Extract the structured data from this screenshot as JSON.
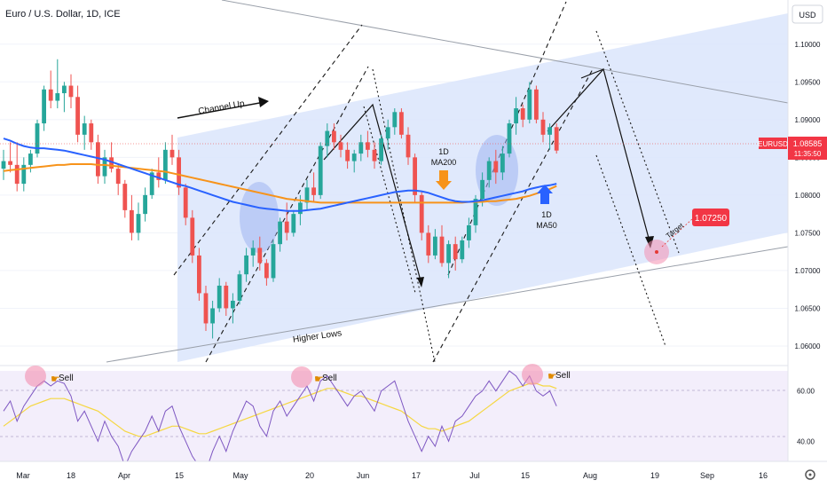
{
  "header": {
    "title": "Euro / U.S. Dollar, 1D, ICE"
  },
  "axis": {
    "currency_label": "USD",
    "y_ticks": [
      "1.10000",
      "1.09500",
      "1.09000",
      "1.08500",
      "1.08000",
      "1.07500",
      "1.07000",
      "1.06500",
      "1.06000"
    ],
    "rsi_ticks": [
      "60.00",
      "40.00"
    ],
    "x_ticks": [
      "Mar",
      "18",
      "Apr",
      "15",
      "May",
      "20",
      "Jun",
      "17",
      "Jul",
      "15",
      "Aug",
      "19",
      "Sep",
      "16"
    ]
  },
  "price_badge": {
    "symbol": "EURUSD",
    "price": "1.08585",
    "countdown": "11:35:50"
  },
  "target_badge": {
    "price": "1.07250"
  },
  "annotations": {
    "channel_up": "Channel Up",
    "higher_lows": "Higher Lows",
    "ma200": [
      "1D",
      "MA200"
    ],
    "ma50": [
      "1D",
      "MA50"
    ],
    "target": "Target",
    "sell": [
      "Sell",
      "Sell",
      "Sell"
    ]
  },
  "colors": {
    "up_candle": "#26a69a",
    "down_candle": "#ef5350",
    "ma50": "#2962ff",
    "ma200": "#f7931a",
    "rsi": "#7e57c2",
    "rsi_ma": "#f5d742",
    "channel_fill": "#dbe5fb",
    "target_badge": "#f23645"
  },
  "chart_data": {
    "type": "candlestick",
    "symbol": "EURUSD",
    "timeframe": "1D",
    "y_range": [
      1.058,
      1.1015
    ],
    "candles_ohlc": [
      [
        1.0835,
        1.086,
        1.082,
        1.0845
      ],
      [
        1.0845,
        1.087,
        1.083,
        1.084
      ],
      [
        1.084,
        1.087,
        1.0805,
        1.0815
      ],
      [
        1.0815,
        1.085,
        1.0805,
        1.084
      ],
      [
        1.084,
        1.086,
        1.083,
        1.0855
      ],
      [
        1.0855,
        1.09,
        1.085,
        1.0895
      ],
      [
        1.0895,
        1.0945,
        1.0885,
        1.094
      ],
      [
        1.094,
        1.0965,
        1.0915,
        1.0925
      ],
      [
        1.0925,
        1.098,
        1.0915,
        1.0935
      ],
      [
        1.0935,
        1.095,
        1.091,
        1.0945
      ],
      [
        1.0945,
        1.096,
        1.0915,
        1.093
      ],
      [
        1.093,
        1.0945,
        1.087,
        1.088
      ],
      [
        1.088,
        1.0905,
        1.086,
        1.0895
      ],
      [
        1.0895,
        1.09,
        1.086,
        1.087
      ],
      [
        1.087,
        1.088,
        1.0815,
        1.0825
      ],
      [
        1.0825,
        1.086,
        1.0815,
        1.085
      ],
      [
        1.085,
        1.087,
        1.083,
        1.0835
      ],
      [
        1.0835,
        1.084,
        1.08,
        1.0815
      ],
      [
        1.0815,
        1.082,
        1.077,
        1.078
      ],
      [
        1.078,
        1.08,
        1.074,
        1.075
      ],
      [
        1.075,
        1.079,
        1.074,
        1.0775
      ],
      [
        1.0775,
        1.081,
        1.0765,
        1.08
      ],
      [
        1.08,
        1.0835,
        1.0795,
        1.083
      ],
      [
        1.083,
        1.085,
        1.081,
        1.082
      ],
      [
        1.082,
        1.087,
        1.0815,
        1.086
      ],
      [
        1.086,
        1.088,
        1.084,
        1.085
      ],
      [
        1.085,
        1.086,
        1.08,
        1.081
      ],
      [
        1.081,
        1.0815,
        1.076,
        1.077
      ],
      [
        1.077,
        1.078,
        1.071,
        1.072
      ],
      [
        1.072,
        1.073,
        1.066,
        1.067
      ],
      [
        1.067,
        1.068,
        1.062,
        1.063
      ],
      [
        1.063,
        1.066,
        1.061,
        1.065
      ],
      [
        1.065,
        1.069,
        1.0645,
        1.068
      ],
      [
        1.068,
        1.0685,
        1.064,
        1.065
      ],
      [
        1.065,
        1.067,
        1.063,
        1.066
      ],
      [
        1.066,
        1.07,
        1.0655,
        1.0695
      ],
      [
        1.0695,
        1.073,
        1.0685,
        1.072
      ],
      [
        1.072,
        1.074,
        1.0705,
        1.073
      ],
      [
        1.073,
        1.0745,
        1.07,
        1.071
      ],
      [
        1.071,
        1.0715,
        1.068,
        1.069
      ],
      [
        1.069,
        1.074,
        1.0685,
        1.0735
      ],
      [
        1.0735,
        1.077,
        1.0725,
        1.0765
      ],
      [
        1.0765,
        1.079,
        1.074,
        1.075
      ],
      [
        1.075,
        1.078,
        1.0745,
        1.0775
      ],
      [
        1.0775,
        1.08,
        1.076,
        1.079
      ],
      [
        1.079,
        1.082,
        1.078,
        1.081
      ],
      [
        1.081,
        1.083,
        1.079,
        1.08
      ],
      [
        1.08,
        1.087,
        1.0795,
        1.0865
      ],
      [
        1.0865,
        1.0895,
        1.085,
        1.0885
      ],
      [
        1.0885,
        1.0895,
        1.086,
        1.087
      ],
      [
        1.087,
        1.088,
        1.085,
        1.086
      ],
      [
        1.086,
        1.087,
        1.0835,
        1.0845
      ],
      [
        1.0845,
        1.086,
        1.083,
        1.0855
      ],
      [
        1.0855,
        1.088,
        1.0845,
        1.087
      ],
      [
        1.087,
        1.0885,
        1.085,
        1.086
      ],
      [
        1.086,
        1.087,
        1.0835,
        1.0845
      ],
      [
        1.0845,
        1.088,
        1.084,
        1.0875
      ],
      [
        1.0875,
        1.09,
        1.086,
        1.089
      ],
      [
        1.089,
        1.0915,
        1.088,
        1.091
      ],
      [
        1.091,
        1.0915,
        1.0875,
        1.088
      ],
      [
        1.088,
        1.089,
        1.084,
        1.085
      ],
      [
        1.085,
        1.0855,
        1.079,
        1.08
      ],
      [
        1.08,
        1.0805,
        1.074,
        1.075
      ],
      [
        1.075,
        1.076,
        1.071,
        1.072
      ],
      [
        1.072,
        1.0755,
        1.0715,
        1.0745
      ],
      [
        1.0745,
        1.076,
        1.0705,
        1.071
      ],
      [
        1.071,
        1.074,
        1.069,
        1.0735
      ],
      [
        1.0735,
        1.0745,
        1.07,
        1.0715
      ],
      [
        1.0715,
        1.0745,
        1.071,
        1.074
      ],
      [
        1.074,
        1.077,
        1.073,
        1.076
      ],
      [
        1.076,
        1.08,
        1.075,
        1.0795
      ],
      [
        1.0795,
        1.083,
        1.0785,
        1.082
      ],
      [
        1.082,
        1.085,
        1.081,
        1.0845
      ],
      [
        1.0845,
        1.086,
        1.0815,
        1.083
      ],
      [
        1.083,
        1.0865,
        1.082,
        1.0855
      ],
      [
        1.0855,
        1.09,
        1.085,
        1.0895
      ],
      [
        1.0895,
        1.093,
        1.088,
        1.0915
      ],
      [
        1.0915,
        1.092,
        1.089,
        1.09
      ],
      [
        1.09,
        1.095,
        1.0895,
        1.094
      ],
      [
        1.094,
        1.0945,
        1.0895,
        1.09
      ],
      [
        1.09,
        1.091,
        1.087,
        1.088
      ],
      [
        1.088,
        1.0895,
        1.086,
        1.089
      ],
      [
        1.089,
        1.0895,
        1.0855,
        1.0859
      ]
    ],
    "ma50": [
      1.0875,
      1.0872,
      1.0868,
      1.0865,
      1.0863,
      1.0862,
      1.0862,
      1.0861,
      1.086,
      1.0859,
      1.0857,
      1.0855,
      1.0853,
      1.0851,
      1.0849,
      1.0847,
      1.0844,
      1.0841,
      1.0838,
      1.0835,
      1.0832,
      1.0829,
      1.0826,
      1.0823,
      1.082,
      1.0817,
      1.0814,
      1.0812,
      1.0809,
      1.0806,
      1.0803,
      1.08,
      1.0797,
      1.0794,
      1.0791,
      1.0789,
      1.0787,
      1.0785,
      1.0783,
      1.0782,
      1.0781,
      1.078,
      1.0779,
      1.0779,
      1.0779,
      1.078,
      1.0781,
      1.0782,
      1.0784,
      1.0786,
      1.0788,
      1.079,
      1.0792,
      1.0794,
      1.0796,
      1.0798,
      1.08,
      1.0802,
      1.0804,
      1.0805,
      1.0806,
      1.0806,
      1.0805,
      1.0803,
      1.08,
      1.0797,
      1.0794,
      1.0792,
      1.0791,
      1.0791,
      1.0792,
      1.0793,
      1.0795,
      1.0797,
      1.0799,
      1.0801,
      1.0803,
      1.0805,
      1.0808,
      1.081,
      1.0812,
      1.0813,
      1.0815
    ],
    "ma200": [
      1.0832,
      1.0833,
      1.0834,
      1.0835,
      1.0836,
      1.0837,
      1.0838,
      1.0839,
      1.084,
      1.084,
      1.0841,
      1.0841,
      1.0841,
      1.0841,
      1.084,
      1.084,
      1.0839,
      1.0838,
      1.0837,
      1.0836,
      1.0835,
      1.0834,
      1.0833,
      1.0832,
      1.0831,
      1.0829,
      1.0827,
      1.0825,
      1.0823,
      1.0821,
      1.0819,
      1.0817,
      1.0815,
      1.0813,
      1.0811,
      1.0809,
      1.0807,
      1.0805,
      1.0803,
      1.0801,
      1.0799,
      1.0797,
      1.0795,
      1.0794,
      1.0793,
      1.0792,
      1.0791,
      1.079,
      1.079,
      1.079,
      1.079,
      1.079,
      1.079,
      1.079,
      1.079,
      1.079,
      1.079,
      1.079,
      1.079,
      1.079,
      1.079,
      1.079,
      1.079,
      1.079,
      1.079,
      1.079,
      1.079,
      1.079,
      1.079,
      1.0791,
      1.0791,
      1.0791,
      1.0792,
      1.0792,
      1.0793,
      1.0794,
      1.0795,
      1.0797,
      1.0799,
      1.0802,
      1.0805,
      1.0808,
      1.0812
    ],
    "rsi_range": [
      32,
      68
    ],
    "rsi": [
      52,
      56,
      48,
      54,
      58,
      62,
      64,
      62,
      64,
      63,
      58,
      48,
      52,
      46,
      40,
      48,
      42,
      38,
      30,
      36,
      40,
      44,
      50,
      44,
      52,
      54,
      46,
      40,
      34,
      30,
      28,
      36,
      42,
      36,
      44,
      50,
      56,
      54,
      46,
      42,
      52,
      56,
      50,
      54,
      58,
      62,
      56,
      64,
      66,
      62,
      58,
      54,
      58,
      60,
      56,
      52,
      60,
      62,
      64,
      56,
      48,
      42,
      36,
      42,
      38,
      46,
      40,
      48,
      50,
      54,
      58,
      60,
      64,
      60,
      64,
      68,
      66,
      62,
      66,
      60,
      58,
      60,
      54
    ],
    "rsi_ma": [
      46,
      48,
      50,
      52,
      54,
      55,
      56,
      57,
      57,
      57,
      56,
      55,
      54,
      53,
      52,
      50,
      48,
      46,
      44,
      43,
      42,
      42,
      43,
      44,
      45,
      46,
      46,
      45,
      44,
      43,
      43,
      44,
      45,
      46,
      47,
      48,
      49,
      50,
      51,
      52,
      53,
      54,
      55,
      56,
      57,
      58,
      59,
      60,
      61,
      61,
      60,
      59,
      58,
      58,
      57,
      56,
      55,
      54,
      53,
      52,
      50,
      48,
      46,
      45,
      45,
      44,
      45,
      46,
      47,
      48,
      50,
      52,
      54,
      56,
      58,
      60,
      61,
      62,
      63,
      63,
      62,
      62,
      61
    ],
    "projection_path": [
      [
        1.0859,
        "now"
      ],
      [
        1.095,
        "peak"
      ],
      [
        1.0725,
        "target"
      ]
    ]
  }
}
